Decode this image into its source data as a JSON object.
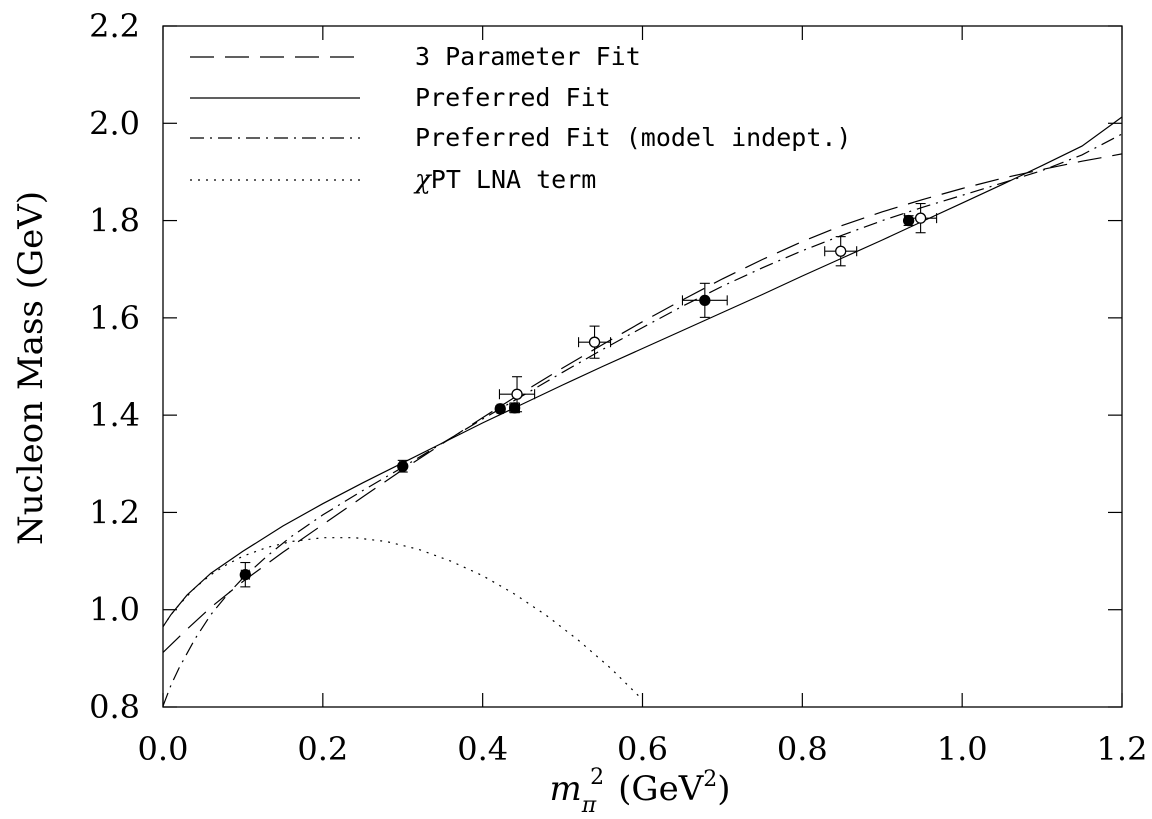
{
  "chart_data": {
    "type": "scatter",
    "title": "",
    "xlabel": "m",
    "xlabel_sub": "π",
    "xlabel_sup": "2",
    "xlabel_unit_pre": "(GeV",
    "xlabel_unit_sup": "2",
    "xlabel_unit_post": ")",
    "ylabel": "Nucleon Mass (GeV)",
    "xlim": [
      0.0,
      1.2
    ],
    "ylim": [
      0.8,
      2.2
    ],
    "x_ticks": [
      "0.0",
      "0.2",
      "0.4",
      "0.6",
      "0.8",
      "1.0",
      "1.2"
    ],
    "y_ticks": [
      "0.8",
      "1.0",
      "1.2",
      "1.4",
      "1.6",
      "1.8",
      "2.0",
      "2.2"
    ],
    "grid": false,
    "legend_position": "top-left",
    "legend": [
      {
        "label": "3 Parameter Fit",
        "style": "dashed"
      },
      {
        "label": "Preferred Fit",
        "style": "solid"
      },
      {
        "label": "Preferred Fit (model indept.)",
        "style": "dash-dot"
      },
      {
        "label": "PT LNA term",
        "prefix": "χ",
        "style": "dotted"
      }
    ],
    "points_filled": [
      {
        "x": 0.103,
        "y": 1.072,
        "xerr": 0.005,
        "yerr": 0.025
      },
      {
        "x": 0.3,
        "y": 1.295,
        "xerr": 0.004,
        "yerr": 0.012
      },
      {
        "x": 0.422,
        "y": 1.413,
        "xerr": 0.004,
        "yerr": 0.006
      },
      {
        "x": 0.44,
        "y": 1.415,
        "xerr": 0.006,
        "yerr": 0.01
      },
      {
        "x": 0.678,
        "y": 1.636,
        "xerr": 0.028,
        "yerr": 0.035
      },
      {
        "x": 0.933,
        "y": 1.8,
        "xerr": 0.004,
        "yerr": 0.01
      }
    ],
    "points_open": [
      {
        "x": 0.443,
        "y": 1.443,
        "xerr": 0.022,
        "yerr": 0.036
      },
      {
        "x": 0.54,
        "y": 1.55,
        "xerr": 0.02,
        "yerr": 0.033
      },
      {
        "x": 0.848,
        "y": 1.737,
        "xerr": 0.02,
        "yerr": 0.03
      },
      {
        "x": 0.948,
        "y": 1.805,
        "xerr": 0.02,
        "yerr": 0.03
      }
    ],
    "series": [
      {
        "style": "dashed",
        "x": [
          0,
          0.03,
          0.06,
          0.1,
          0.15,
          0.2,
          0.25,
          0.3,
          0.35,
          0.4,
          0.45,
          0.5,
          0.55,
          0.6,
          0.65,
          0.7,
          0.75,
          0.8,
          0.85,
          0.9,
          0.95,
          1.0,
          1.05,
          1.1,
          1.15,
          1.2
        ],
        "y": [
          0.912,
          0.96,
          1.005,
          1.058,
          1.118,
          1.175,
          1.232,
          1.288,
          1.342,
          1.395,
          1.447,
          1.497,
          1.545,
          1.592,
          1.637,
          1.68,
          1.72,
          1.757,
          1.79,
          1.818,
          1.843,
          1.866,
          1.887,
          1.905,
          1.922,
          1.937
        ]
      },
      {
        "style": "solid",
        "x": [
          0,
          0.01,
          0.03,
          0.06,
          0.1,
          0.15,
          0.2,
          0.25,
          0.3,
          0.35,
          0.4,
          0.45,
          0.5,
          0.55,
          0.6,
          0.65,
          0.7,
          0.75,
          0.8,
          0.85,
          0.9,
          0.95,
          1.0,
          1.05,
          1.1,
          1.15,
          1.2
        ],
        "y": [
          0.965,
          0.99,
          1.03,
          1.075,
          1.12,
          1.172,
          1.218,
          1.261,
          1.302,
          1.343,
          1.384,
          1.423,
          1.462,
          1.5,
          1.537,
          1.574,
          1.611,
          1.648,
          1.686,
          1.723,
          1.76,
          1.798,
          1.836,
          1.874,
          1.913,
          1.953,
          2.013
        ]
      },
      {
        "style": "dash-dot",
        "x": [
          0,
          0.01,
          0.02,
          0.04,
          0.06,
          0.08,
          0.1,
          0.13,
          0.16,
          0.2,
          0.25,
          0.3,
          0.35,
          0.4,
          0.45,
          0.5,
          0.55,
          0.6,
          0.65,
          0.7,
          0.75,
          0.8,
          0.85,
          0.9,
          0.95,
          1.0,
          1.05,
          1.1,
          1.15,
          1.2
        ],
        "y": [
          0.802,
          0.845,
          0.88,
          0.94,
          0.99,
          1.03,
          1.065,
          1.11,
          1.15,
          1.195,
          1.245,
          1.293,
          1.343,
          1.392,
          1.44,
          1.488,
          1.535,
          1.58,
          1.624,
          1.665,
          1.703,
          1.738,
          1.77,
          1.8,
          1.827,
          1.852,
          1.877,
          1.903,
          1.935,
          1.978
        ]
      },
      {
        "style": "dotted",
        "x": [
          0,
          0.01,
          0.02,
          0.04,
          0.06,
          0.08,
          0.1,
          0.13,
          0.16,
          0.2,
          0.24,
          0.28,
          0.32,
          0.36,
          0.4,
          0.44,
          0.48,
          0.52,
          0.56,
          0.6
        ],
        "y": [
          0.965,
          0.99,
          1.01,
          1.045,
          1.072,
          1.093,
          1.11,
          1.128,
          1.14,
          1.148,
          1.148,
          1.14,
          1.124,
          1.1,
          1.07,
          1.032,
          0.988,
          0.937,
          0.88,
          0.815
        ]
      }
    ]
  }
}
